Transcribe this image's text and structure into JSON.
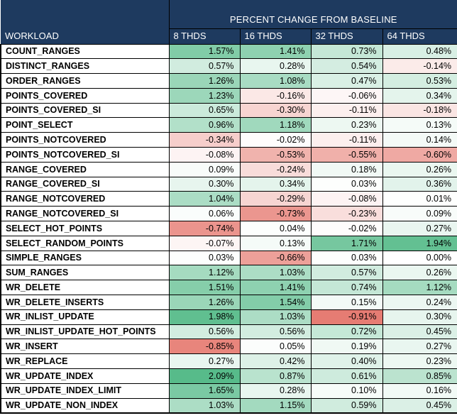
{
  "header": {
    "workload_label": "WORKLOAD"
  },
  "colors": {
    "header_bg": "#1E3A5F",
    "header_text": "#FFFFFF",
    "grid_border": "#000000",
    "scale_min_color": "#E67C73",
    "scale_mid_color": "#FFFFFF",
    "scale_max_color": "#57BB8A"
  },
  "chart_data": {
    "type": "heatmap",
    "title": "PERCENT CHANGE FROM BASELINE",
    "columns": [
      "8 THDS",
      "16 THDS",
      "32 THDS",
      "64 THDS"
    ],
    "value_format": "percent with 2 decimals",
    "color_scale": {
      "min_color": "#E67C73",
      "mid_color": "#FFFFFF",
      "max_color": "#57BB8A",
      "domain": [
        -0.91,
        0,
        2.09
      ]
    },
    "rows": [
      {
        "workload": "COUNT_RANGES",
        "values": [
          "1.57%",
          "1.41%",
          "0.73%",
          "0.48%"
        ]
      },
      {
        "workload": "DISTINCT_RANGES",
        "values": [
          "0.57%",
          "0.28%",
          "0.54%",
          "-0.14%"
        ]
      },
      {
        "workload": "ORDER_RANGES",
        "values": [
          "1.26%",
          "1.08%",
          "0.47%",
          "0.53%"
        ]
      },
      {
        "workload": "POINTS_COVERED",
        "values": [
          "1.23%",
          "-0.16%",
          "-0.06%",
          "0.34%"
        ]
      },
      {
        "workload": "POINTS_COVERED_SI",
        "values": [
          "0.65%",
          "-0.30%",
          "-0.11%",
          "-0.18%"
        ]
      },
      {
        "workload": "POINT_SELECT",
        "values": [
          "0.96%",
          "1.18%",
          "0.23%",
          "0.13%"
        ]
      },
      {
        "workload": "POINTS_NOTCOVERED",
        "values": [
          "-0.34%",
          "-0.02%",
          "-0.11%",
          "0.14%"
        ]
      },
      {
        "workload": "POINTS_NOTCOVERED_SI",
        "values": [
          "-0.08%",
          "-0.53%",
          "-0.55%",
          "-0.60%"
        ]
      },
      {
        "workload": "RANGE_COVERED",
        "values": [
          "0.09%",
          "-0.24%",
          "0.18%",
          "0.26%"
        ]
      },
      {
        "workload": "RANGE_COVERED_SI",
        "values": [
          "0.30%",
          "0.34%",
          "0.03%",
          "0.36%"
        ]
      },
      {
        "workload": "RANGE_NOTCOVERED",
        "values": [
          "1.04%",
          "-0.29%",
          "-0.08%",
          "0.01%"
        ]
      },
      {
        "workload": "RANGE_NOTCOVERED_SI",
        "values": [
          "0.06%",
          "-0.73%",
          "-0.23%",
          "0.09%"
        ]
      },
      {
        "workload": "SELECT_HOT_POINTS",
        "values": [
          "-0.74%",
          "0.04%",
          "-0.02%",
          "0.27%"
        ]
      },
      {
        "workload": "SELECT_RANDOM_POINTS",
        "values": [
          "-0.07%",
          "0.13%",
          "1.71%",
          "1.94%"
        ]
      },
      {
        "workload": "SIMPLE_RANGES",
        "values": [
          "0.03%",
          "-0.66%",
          "0.03%",
          "0.00%"
        ]
      },
      {
        "workload": "SUM_RANGES",
        "values": [
          "1.12%",
          "1.03%",
          "0.57%",
          "0.26%"
        ]
      },
      {
        "workload": "WR_DELETE",
        "values": [
          "1.51%",
          "1.41%",
          "0.74%",
          "1.12%"
        ]
      },
      {
        "workload": "WR_DELETE_INSERTS",
        "values": [
          "1.26%",
          "1.54%",
          "0.15%",
          "0.24%"
        ]
      },
      {
        "workload": "WR_INLIST_UPDATE",
        "values": [
          "1.98%",
          "1.03%",
          "-0.91%",
          "0.30%"
        ]
      },
      {
        "workload": "WR_INLIST_UPDATE_HOT_POINTS",
        "values": [
          "0.56%",
          "0.56%",
          "0.72%",
          "0.45%"
        ]
      },
      {
        "workload": "WR_INSERT",
        "values": [
          "-0.85%",
          "0.05%",
          "0.19%",
          "0.27%"
        ]
      },
      {
        "workload": "WR_REPLACE",
        "values": [
          "0.27%",
          "0.42%",
          "0.40%",
          "0.23%"
        ]
      },
      {
        "workload": "WR_UPDATE_INDEX",
        "values": [
          "2.09%",
          "0.87%",
          "0.61%",
          "0.85%"
        ]
      },
      {
        "workload": "WR_UPDATE_INDEX_LIMIT",
        "values": [
          "1.65%",
          "0.28%",
          "0.10%",
          "0.16%"
        ]
      },
      {
        "workload": "WR_UPDATE_NON_INDEX",
        "values": [
          "1.03%",
          "1.15%",
          "0.59%",
          "0.45%"
        ]
      }
    ]
  }
}
